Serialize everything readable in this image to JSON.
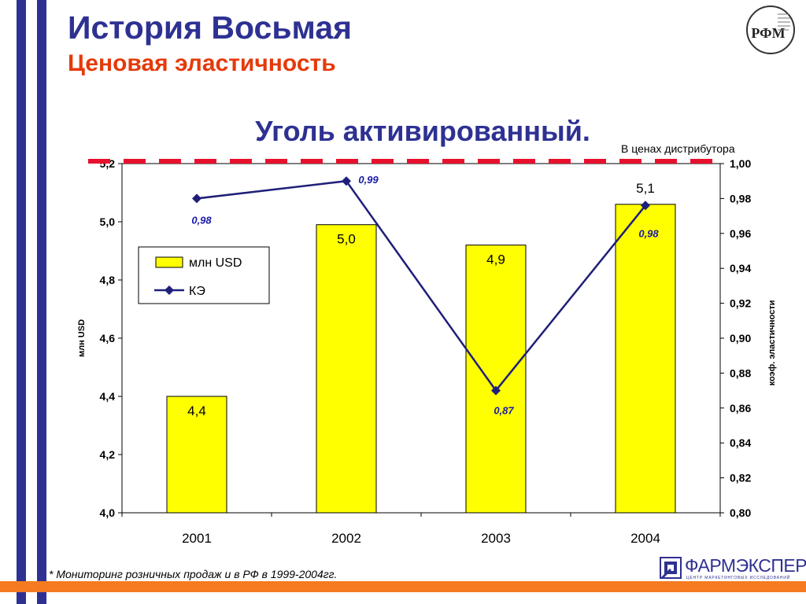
{
  "slide": {
    "title": "История Восьмая",
    "subtitle": "Ценовая эластичность",
    "chart_title": "Уголь активированный.",
    "price_note": "В ценах дистрибутора",
    "footnote": "* Мониторинг розничных продаж и в РФ в 1999-2004гг.",
    "brand_name": "ФАРМЭКСПЕРТ",
    "brand_tagline": "ЦЕНТР МАРКЕТИНГОВЫХ ИССЛЕДОВАНИЙ",
    "logo_letters": "РФМ"
  },
  "colors": {
    "title": "#2e3192",
    "subtitle": "#e53a0b",
    "bar_fill": "#ffff00",
    "line": "#1f1f7a",
    "dashed_line": "#e8112d",
    "footer_bar": "#f47b20",
    "stripes": "#2e3192"
  },
  "chart_data": {
    "type": "bar",
    "categories": [
      "2001",
      "2002",
      "2003",
      "2004"
    ],
    "series": [
      {
        "name": "млн USD",
        "type": "bar",
        "axis": "left",
        "values": [
          4.4,
          4.99,
          4.92,
          5.06
        ],
        "labels": [
          "4,4",
          "5,0",
          "4,9",
          "5,1"
        ]
      },
      {
        "name": "КЭ",
        "type": "line",
        "axis": "right",
        "values": [
          0.98,
          0.99,
          0.87,
          0.976
        ],
        "labels": [
          "0,98",
          "0,99",
          "0,87",
          "0,98"
        ]
      }
    ],
    "ylabel": "млн USD",
    "y2label": "коэф. эластичности",
    "ylim": [
      4.0,
      5.2
    ],
    "y2lim": [
      0.8,
      1.0
    ],
    "yticks": [
      "4,0",
      "4,2",
      "4,4",
      "4,6",
      "4,8",
      "5,0",
      "5,2"
    ],
    "y2ticks": [
      "0,80",
      "0,82",
      "0,84",
      "0,86",
      "0,88",
      "0,90",
      "0,92",
      "0,94",
      "0,96",
      "0,98",
      "1,00"
    ],
    "legend_position": "upper-left",
    "grid": false
  }
}
